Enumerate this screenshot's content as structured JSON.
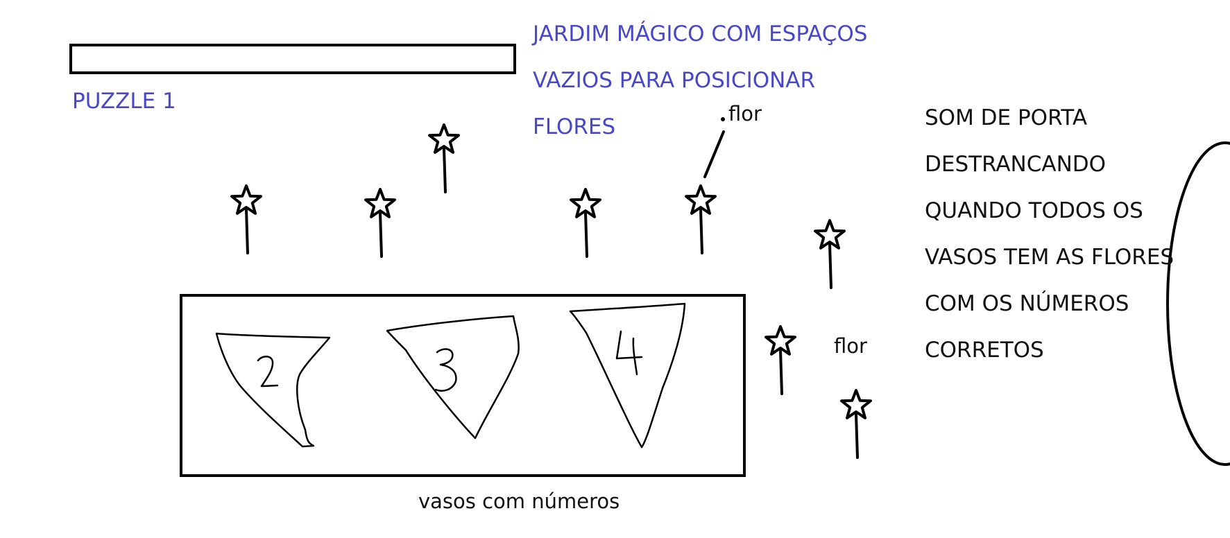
{
  "puzzle_label": "PUZZLE 1",
  "garden_title": {
    "lines": [
      "JARDIM MÁGICO COM ESPAÇOS",
      "VAZIOS PARA POSICIONAR",
      "FLORES"
    ]
  },
  "description": {
    "lines": [
      "SOM DE PORTA",
      "DESTRANCANDO",
      "QUANDO TODOS OS",
      "VASOS TEM AS FLORES",
      "COM OS NÚMEROS",
      "CORRETOS"
    ]
  },
  "flower_label_top": "flor",
  "flower_label_side": "flor",
  "vases_caption": "vasos com números",
  "vase_numbers": [
    "2",
    "3",
    "4"
  ]
}
